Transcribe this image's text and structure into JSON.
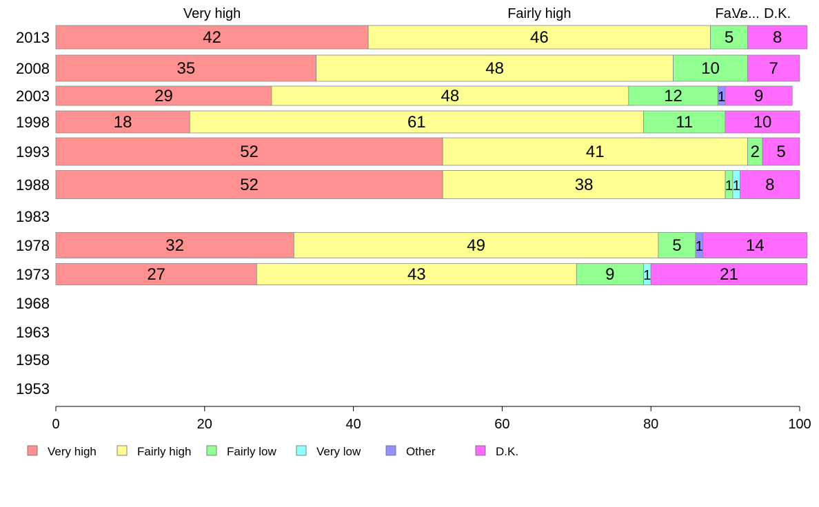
{
  "chart_data": {
    "type": "bar",
    "orientation": "horizontal",
    "stacked": true,
    "categories": [
      "2013",
      "2008",
      "2003",
      "1998",
      "1993",
      "1988",
      "1983",
      "1978",
      "1973",
      "1968",
      "1963",
      "1958",
      "1953"
    ],
    "series": [
      {
        "name": "Very high",
        "color": "#ff9190",
        "values": [
          42,
          35,
          29,
          18,
          52,
          52,
          null,
          32,
          27,
          null,
          null,
          null,
          null
        ]
      },
      {
        "name": "Fairly high",
        "color": "#ffff91",
        "values": [
          46,
          48,
          48,
          61,
          41,
          38,
          null,
          49,
          43,
          null,
          null,
          null,
          null
        ]
      },
      {
        "name": "Fairly low",
        "color": "#91ff91",
        "values": [
          5,
          10,
          12,
          11,
          2,
          1,
          null,
          5,
          9,
          null,
          null,
          null,
          null
        ]
      },
      {
        "name": "Very low",
        "color": "#91ffff",
        "values": [
          0,
          0,
          0,
          0,
          0,
          1,
          null,
          0,
          1,
          null,
          null,
          null,
          null
        ]
      },
      {
        "name": "Other",
        "color": "#9191ff",
        "values": [
          0,
          0,
          1,
          0,
          0,
          0,
          null,
          1,
          0,
          null,
          null,
          null,
          null
        ]
      },
      {
        "name": "D.K.",
        "color": "#ff6bff",
        "values": [
          8,
          7,
          9,
          10,
          5,
          8,
          null,
          14,
          21,
          null,
          null,
          null,
          null
        ]
      }
    ],
    "top_labels": [
      "Very high",
      "Fairly high",
      "Fa...",
      "Ve...",
      "D.K."
    ],
    "xlim": [
      0,
      100
    ],
    "xticks": [
      "0",
      "20",
      "40",
      "60",
      "80",
      "100"
    ],
    "grid": false,
    "legend_position": "bottom"
  }
}
